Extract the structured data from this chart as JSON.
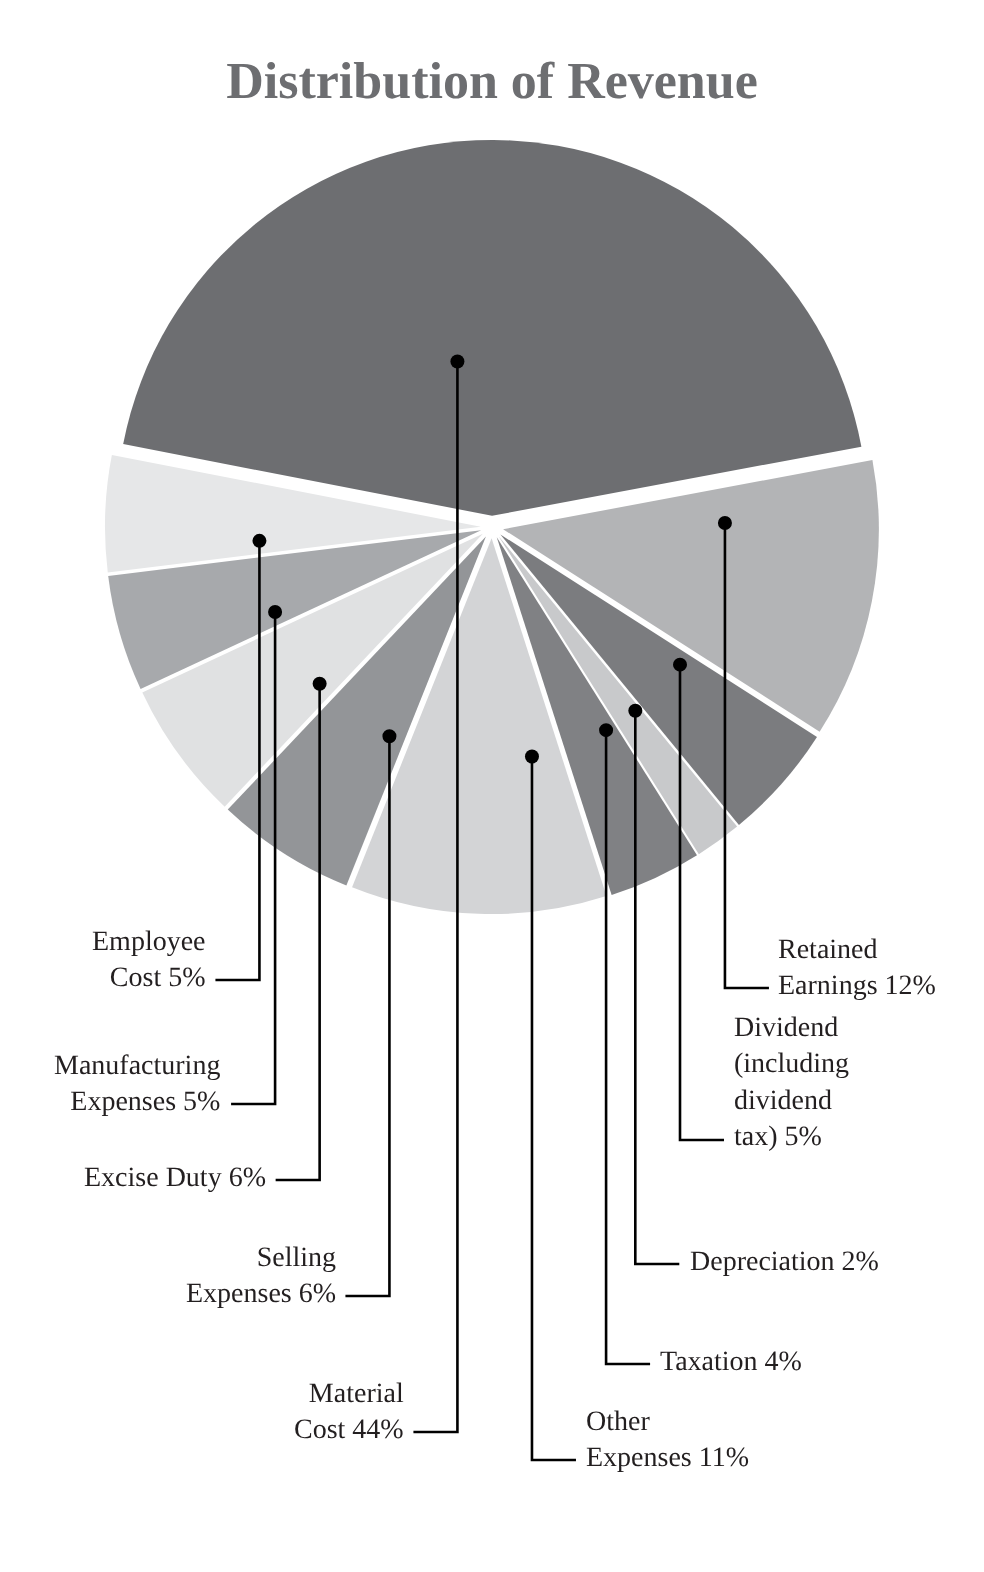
{
  "chart_data": {
    "type": "pie",
    "title": "Distribution of Revenue",
    "categories": [
      "Material Cost",
      "Retained Earnings",
      "Dividend (including dividend tax)",
      "Depreciation",
      "Taxation",
      "Other Expenses",
      "Selling Expenses",
      "Excise Duty",
      "Manufacturing Expenses",
      "Employee Cost"
    ],
    "values": [
      44,
      12,
      5,
      2,
      4,
      11,
      6,
      6,
      5,
      5
    ],
    "value_labels": [
      "44%",
      "12%",
      "5%",
      "2%",
      "4%",
      "11%",
      "6%",
      "6%",
      "5%",
      "5%"
    ],
    "colors": [
      "#6d6e71",
      "#b3b4b6",
      "#7b7c7f",
      "#c8c9cb",
      "#808184",
      "#d3d4d6",
      "#939598",
      "#e0e1e2",
      "#a7a9ac",
      "#e6e7e8"
    ]
  }
}
